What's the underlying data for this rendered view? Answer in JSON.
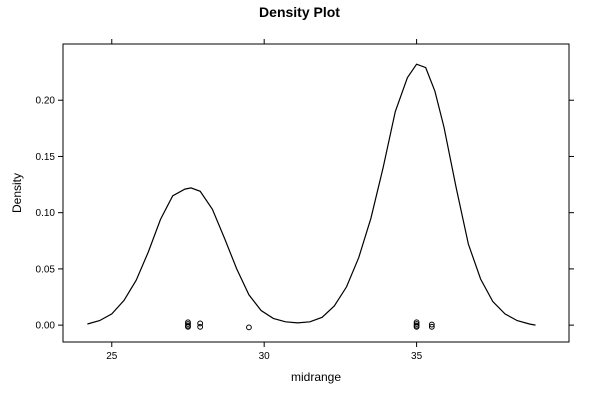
{
  "chart_data": {
    "type": "line",
    "title": "Density Plot",
    "xlabel": "midrange",
    "ylabel": "Density",
    "xlim": [
      23.4,
      40.0
    ],
    "ylim": [
      -0.015,
      0.25
    ],
    "x_ticks": [
      25,
      30,
      35
    ],
    "x_tick_labels": [
      "25",
      "30",
      "35"
    ],
    "y_ticks": [
      0.0,
      0.05,
      0.1,
      0.15,
      0.2
    ],
    "y_tick_labels": [
      "0.00",
      "0.05",
      "0.10",
      "0.15",
      "0.20"
    ],
    "grid": false,
    "series": [
      {
        "style": "line",
        "x": [
          24.2,
          24.6,
          25.0,
          25.4,
          25.8,
          26.2,
          26.6,
          27.0,
          27.4,
          27.6,
          27.9,
          28.3,
          28.7,
          29.1,
          29.5,
          29.9,
          30.3,
          30.7,
          31.1,
          31.5,
          31.9,
          32.3,
          32.7,
          33.1,
          33.5,
          33.9,
          34.3,
          34.7,
          35.0,
          35.3,
          35.6,
          35.9,
          36.3,
          36.7,
          37.1,
          37.5,
          37.9,
          38.3,
          38.7,
          38.9
        ],
        "y": [
          0.001,
          0.004,
          0.01,
          0.022,
          0.04,
          0.065,
          0.094,
          0.115,
          0.121,
          0.122,
          0.119,
          0.103,
          0.077,
          0.05,
          0.027,
          0.013,
          0.006,
          0.003,
          0.002,
          0.003,
          0.007,
          0.017,
          0.034,
          0.06,
          0.095,
          0.14,
          0.19,
          0.22,
          0.232,
          0.229,
          0.208,
          0.176,
          0.122,
          0.072,
          0.041,
          0.021,
          0.01,
          0.004,
          0.001,
          0.0
        ]
      },
      {
        "style": "points",
        "x": [
          27.5,
          27.5,
          27.5,
          27.5,
          27.9,
          27.9,
          29.5,
          35.0,
          35.0,
          35.0,
          35.0,
          35.5,
          35.5
        ],
        "y": [
          0.0025,
          0.001,
          -0.0005,
          -0.0015,
          0.0015,
          -0.0015,
          -0.002,
          0.0025,
          0.001,
          -0.0005,
          -0.0015,
          0.0005,
          -0.0015
        ]
      }
    ]
  }
}
